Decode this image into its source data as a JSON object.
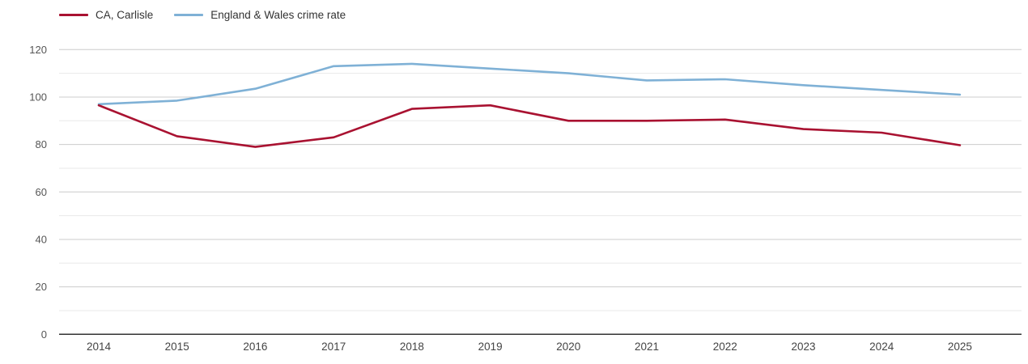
{
  "legend": {
    "items": [
      {
        "label": "CA, Carlisle",
        "color": "#a91231"
      },
      {
        "label": "England & Wales crime rate",
        "color": "#7fb1d6"
      }
    ]
  },
  "axis": {
    "y_tick_labels": [
      "0",
      "20",
      "40",
      "60",
      "80",
      "100",
      "120"
    ],
    "x_tick_labels": [
      "2014",
      "2015",
      "2016",
      "2017",
      "2018",
      "2019",
      "2020",
      "2021",
      "2022",
      "2023",
      "2024",
      "2025"
    ]
  },
  "colors": {
    "major_grid": "#cccccc",
    "minor_grid": "#e8e8e8",
    "axis_line": "#333333",
    "carlisle_line": "#a91231",
    "england_wales_line": "#7fb1d6"
  },
  "chart_data": {
    "type": "line",
    "title": "",
    "xlabel": "",
    "ylabel": "",
    "x": [
      2014,
      2015,
      2016,
      2017,
      2018,
      2019,
      2020,
      2021,
      2022,
      2023,
      2024,
      2025
    ],
    "series": [
      {
        "name": "CA, Carlisle",
        "color": "#a91231",
        "values": [
          96.5,
          83.5,
          79,
          83,
          95,
          96.5,
          90,
          90,
          90.5,
          86.5,
          85,
          79.7
        ]
      },
      {
        "name": "England & Wales crime rate",
        "color": "#7fb1d6",
        "values": [
          97,
          98.5,
          103.5,
          113,
          114,
          112,
          110,
          107,
          107.5,
          105,
          103,
          101
        ]
      }
    ],
    "ylim": [
      0,
      120
    ],
    "y_major_ticks": [
      0,
      20,
      40,
      60,
      80,
      100,
      120
    ],
    "y_minor_ticks": [
      10,
      30,
      50,
      70,
      90,
      110
    ],
    "grid": "horizontal major + minor, no vertical grid",
    "legend_position": "top-left"
  }
}
